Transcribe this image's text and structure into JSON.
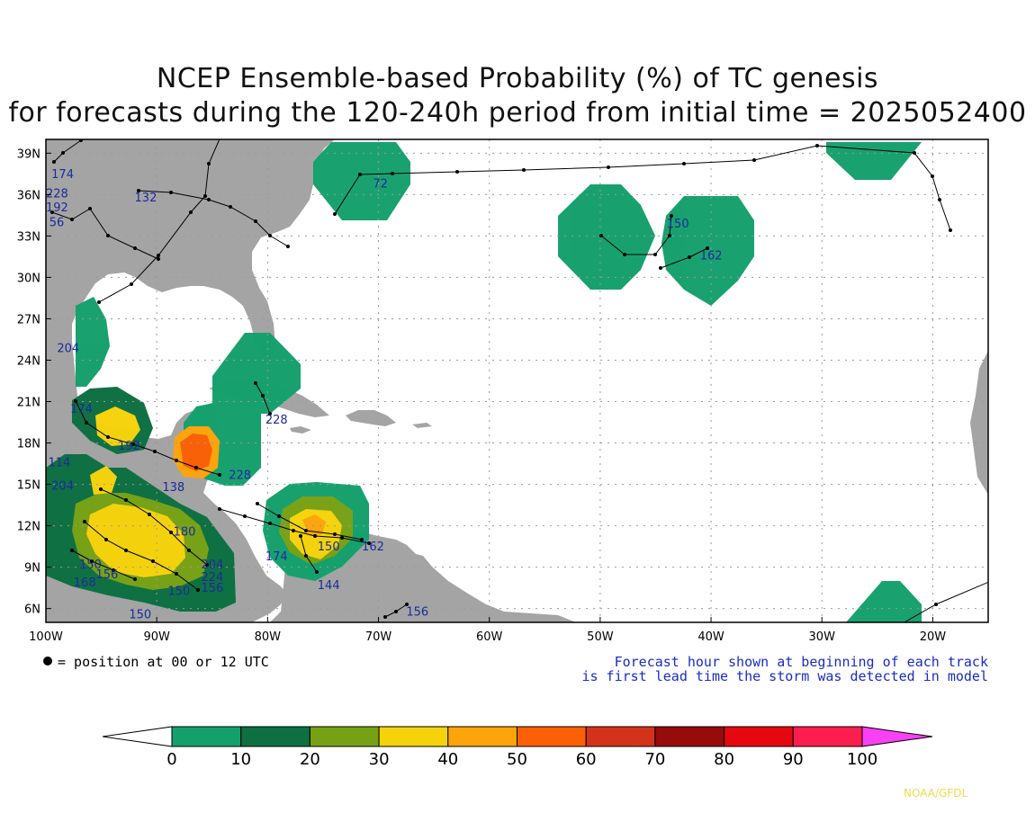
{
  "title_line1": "NCEP Ensemble-based Probability (%) of TC genesis",
  "title_line2": "for forecasts during the 120-240h period from initial time = 2025052400",
  "map": {
    "lon_range": [
      -100,
      -15
    ],
    "lat_range": [
      5,
      40
    ],
    "lon_ticks": [
      "100W",
      "90W",
      "80W",
      "70W",
      "60W",
      "50W",
      "40W",
      "30W",
      "20W"
    ],
    "lat_ticks": [
      "6N",
      "9N",
      "12N",
      "15N",
      "18N",
      "21N",
      "24N",
      "27N",
      "30N",
      "33N",
      "36N",
      "39N"
    ],
    "land_color": "#a4a4a4",
    "ocean_color": "#ffffff",
    "gridlines": "dotted"
  },
  "track_labels": [
    {
      "text": "174",
      "lon": -99.5,
      "lat": 37.2
    },
    {
      "text": "228",
      "lon": -100.0,
      "lat": 35.8
    },
    {
      "text": "192",
      "lon": -100.0,
      "lat": 34.8
    },
    {
      "text": "56",
      "lon": -99.7,
      "lat": 33.7
    },
    {
      "text": "132",
      "lon": -92.0,
      "lat": 35.5
    },
    {
      "text": "72",
      "lon": -70.5,
      "lat": 36.5
    },
    {
      "text": "150",
      "lon": -44.0,
      "lat": 33.6
    },
    {
      "text": "162",
      "lon": -41.0,
      "lat": 31.3
    },
    {
      "text": "204",
      "lon": -99.0,
      "lat": 24.6
    },
    {
      "text": "228",
      "lon": -80.2,
      "lat": 19.4
    },
    {
      "text": "174",
      "lon": -97.8,
      "lat": 20.2
    },
    {
      "text": "192",
      "lon": -93.5,
      "lat": 17.5
    },
    {
      "text": "138",
      "lon": -89.5,
      "lat": 14.5
    },
    {
      "text": "228",
      "lon": -83.5,
      "lat": 15.4
    },
    {
      "text": "114",
      "lon": -99.8,
      "lat": 16.3
    },
    {
      "text": "204",
      "lon": -99.5,
      "lat": 14.6
    },
    {
      "text": "174",
      "lon": -80.2,
      "lat": 9.5
    },
    {
      "text": "144",
      "lon": -75.5,
      "lat": 7.4
    },
    {
      "text": "150",
      "lon": -75.5,
      "lat": 10.2
    },
    {
      "text": "162",
      "lon": -71.5,
      "lat": 10.2
    },
    {
      "text": "150",
      "lon": -97.0,
      "lat": 8.9
    },
    {
      "text": "168",
      "lon": -97.5,
      "lat": 7.6
    },
    {
      "text": "156",
      "lon": -95.5,
      "lat": 8.2
    },
    {
      "text": "204",
      "lon": -86.0,
      "lat": 8.9
    },
    {
      "text": "224",
      "lon": -86.0,
      "lat": 8.0
    },
    {
      "text": "156",
      "lon": -86.0,
      "lat": 7.2
    },
    {
      "text": "150",
      "lon": -89.0,
      "lat": 7.0
    },
    {
      "text": "180",
      "lon": -88.5,
      "lat": 11.3
    },
    {
      "text": "156",
      "lon": -67.5,
      "lat": 5.5
    },
    {
      "text": "150",
      "lon": -92.5,
      "lat": 5.3
    }
  ],
  "legend_dot_text": "= position at 00 or 12 UTC",
  "note_line1": "Forecast hour shown at beginning of each track",
  "note_line2": "is first lead time the storm was detected in model",
  "colorbar": {
    "labels": [
      "0",
      "10",
      "20",
      "30",
      "40",
      "50",
      "60",
      "70",
      "80",
      "90",
      "100"
    ],
    "colors": [
      "#14a06d",
      "#0d6f42",
      "#77a115",
      "#f5d30a",
      "#fda40a",
      "#fb6005",
      "#d3331a",
      "#960b0b",
      "#e50810",
      "#fb1e4e"
    ],
    "under_color": "#ffffff",
    "over_color": "#f940f4"
  },
  "credit": "NOAA/GFDL"
}
